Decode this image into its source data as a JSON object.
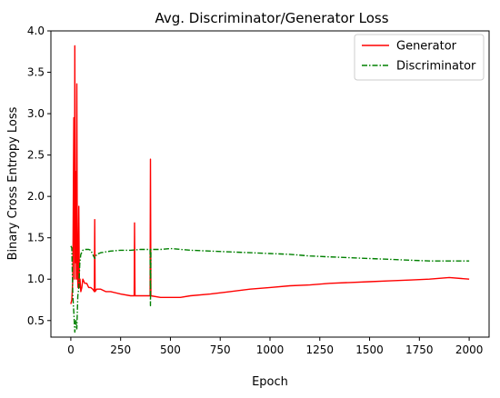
{
  "chart_data": {
    "type": "line",
    "title": "Avg. Discriminator/Generator Loss",
    "xlabel": "Epoch",
    "ylabel": "Binary Cross Entropy Loss",
    "xlim": [
      -100,
      2100
    ],
    "ylim": [
      0.3,
      4.0
    ],
    "x_ticks": [
      0,
      250,
      500,
      750,
      1000,
      1250,
      1500,
      1750,
      2000
    ],
    "y_ticks": [
      0.5,
      1.0,
      1.5,
      2.0,
      2.5,
      3.0,
      3.5,
      4.0
    ],
    "x_tick_labels": [
      "0",
      "250",
      "500",
      "750",
      "1000",
      "1250",
      "1500",
      "1750",
      "2000"
    ],
    "y_tick_labels": [
      "0.5",
      "1.0",
      "1.5",
      "2.0",
      "2.5",
      "3.0",
      "3.5",
      "4.0"
    ],
    "grid": false,
    "legend_position": "top-right",
    "series": [
      {
        "name": "Generator",
        "color": "#ff0000",
        "style": "solid",
        "x": [
          0,
          5,
          10,
          15,
          18,
          20,
          22,
          25,
          28,
          30,
          33,
          36,
          40,
          43,
          46,
          50,
          55,
          60,
          70,
          80,
          90,
          100,
          110,
          118,
          120,
          122,
          130,
          150,
          175,
          200,
          250,
          300,
          318,
          320,
          322,
          350,
          398,
          400,
          402,
          450,
          500,
          550,
          600,
          700,
          800,
          900,
          1000,
          1100,
          1200,
          1300,
          1400,
          1500,
          1600,
          1700,
          1800,
          1900,
          2000
        ],
        "y": [
          0.7,
          0.75,
          1.0,
          2.95,
          1.0,
          3.82,
          1.2,
          2.3,
          1.0,
          3.36,
          1.1,
          0.9,
          1.88,
          0.9,
          1.0,
          0.85,
          0.9,
          1.0,
          0.95,
          0.95,
          0.9,
          0.9,
          0.88,
          0.85,
          1.72,
          0.85,
          0.88,
          0.88,
          0.85,
          0.85,
          0.82,
          0.8,
          0.8,
          1.68,
          0.8,
          0.8,
          0.8,
          2.45,
          0.8,
          0.78,
          0.78,
          0.78,
          0.8,
          0.82,
          0.85,
          0.88,
          0.9,
          0.92,
          0.93,
          0.95,
          0.96,
          0.97,
          0.98,
          0.99,
          1.0,
          1.02,
          1.0
        ]
      },
      {
        "name": "Discriminator",
        "color": "#008000",
        "style": "dashdot",
        "x": [
          0,
          5,
          10,
          15,
          20,
          25,
          30,
          35,
          40,
          45,
          50,
          60,
          70,
          80,
          90,
          100,
          110,
          120,
          130,
          150,
          175,
          200,
          250,
          300,
          350,
          398,
          400,
          402,
          450,
          500,
          600,
          700,
          800,
          900,
          1000,
          1100,
          1200,
          1300,
          1400,
          1500,
          1600,
          1700,
          1800,
          1900,
          2000
        ],
        "y": [
          1.4,
          1.38,
          0.8,
          0.6,
          0.36,
          0.5,
          0.4,
          0.8,
          0.9,
          1.2,
          1.3,
          1.35,
          1.36,
          1.36,
          1.36,
          1.35,
          1.3,
          1.25,
          1.3,
          1.32,
          1.33,
          1.34,
          1.35,
          1.35,
          1.36,
          1.36,
          0.68,
          1.36,
          1.36,
          1.37,
          1.35,
          1.34,
          1.33,
          1.32,
          1.31,
          1.3,
          1.28,
          1.27,
          1.26,
          1.25,
          1.24,
          1.23,
          1.22,
          1.22,
          1.22
        ]
      }
    ]
  }
}
